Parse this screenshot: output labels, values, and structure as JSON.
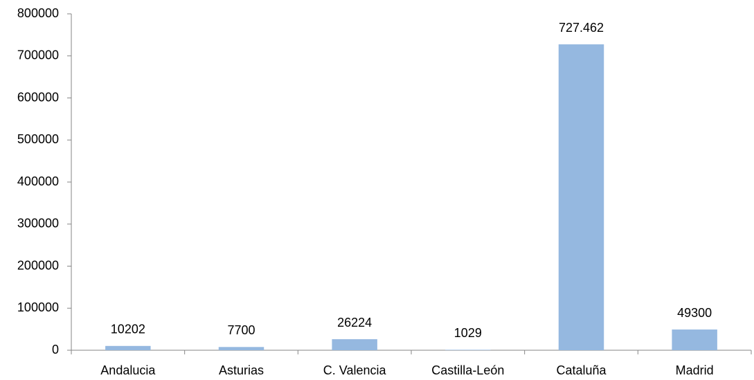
{
  "chart_data": {
    "type": "bar",
    "categories": [
      "Andalucia",
      "Asturias",
      "C. Valencia",
      "Castilla-León",
      "Cataluña",
      "Madrid"
    ],
    "values": [
      10202,
      7700,
      26224,
      1029,
      727462,
      49300
    ],
    "value_labels": [
      "10202",
      "7700",
      "26224",
      "1029",
      "727.462",
      "49300"
    ],
    "color": "#95b8e0",
    "ylim": [
      0,
      800000
    ],
    "yticks": [
      0,
      100000,
      200000,
      300000,
      400000,
      500000,
      600000,
      700000,
      800000
    ],
    "grid": false
  }
}
